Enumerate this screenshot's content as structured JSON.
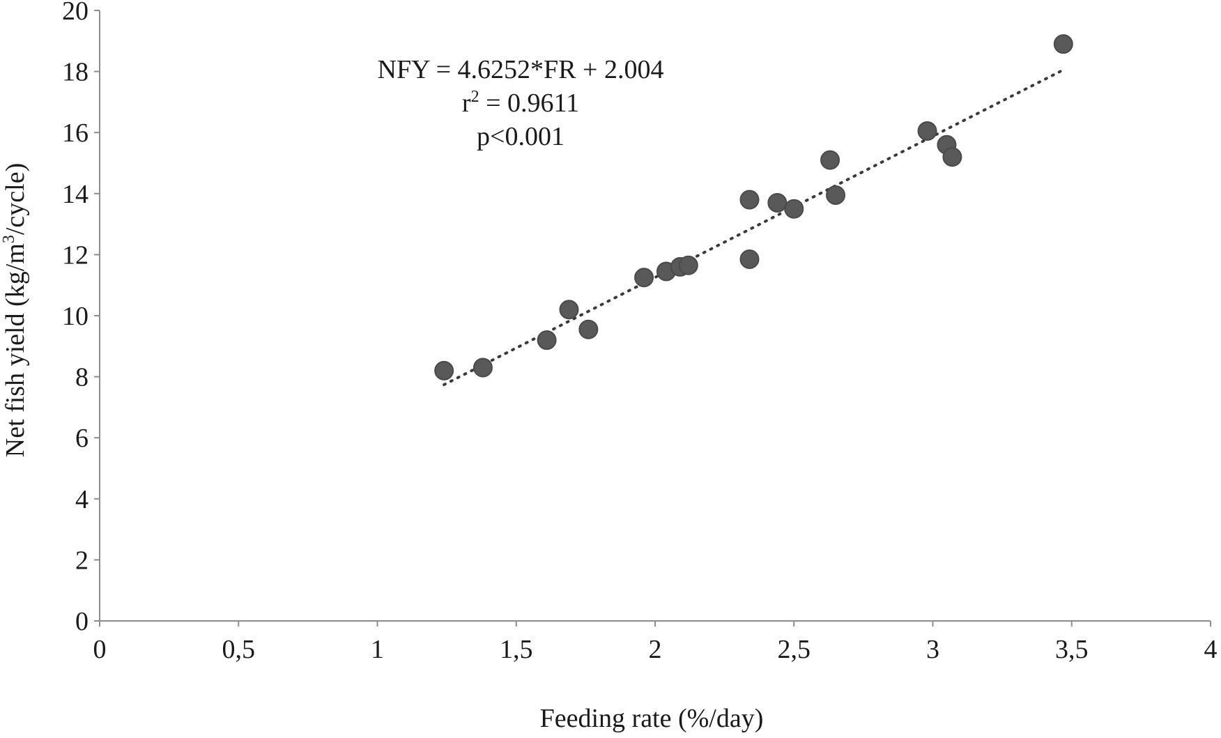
{
  "chart_data": {
    "type": "scatter",
    "xlabel": "Feeding rate (%/day)",
    "ylabel_parts": [
      "Net  fish yield (kg/m",
      "3",
      "/cycle)"
    ],
    "xlim": [
      0,
      4
    ],
    "ylim": [
      0,
      20
    ],
    "x_ticks": [
      0,
      0.5,
      1,
      1.5,
      2,
      2.5,
      3,
      3.5,
      4
    ],
    "x_tick_labels": [
      "0",
      "0,5",
      "1",
      "1,5",
      "2",
      "2,5",
      "3",
      "3,5",
      "4"
    ],
    "y_ticks": [
      0,
      2,
      4,
      6,
      8,
      10,
      12,
      14,
      16,
      18,
      20
    ],
    "y_tick_labels": [
      "0",
      "2",
      "4",
      "6",
      "8",
      "10",
      "12",
      "14",
      "16",
      "18",
      "20"
    ],
    "grid": false,
    "points": [
      {
        "x": 1.24,
        "y": 8.2
      },
      {
        "x": 1.38,
        "y": 8.3
      },
      {
        "x": 1.61,
        "y": 9.2
      },
      {
        "x": 1.69,
        "y": 10.2
      },
      {
        "x": 1.76,
        "y": 9.55
      },
      {
        "x": 1.96,
        "y": 11.25
      },
      {
        "x": 2.04,
        "y": 11.45
      },
      {
        "x": 2.09,
        "y": 11.6
      },
      {
        "x": 2.12,
        "y": 11.65
      },
      {
        "x": 2.34,
        "y": 13.8
      },
      {
        "x": 2.34,
        "y": 11.85
      },
      {
        "x": 2.44,
        "y": 13.7
      },
      {
        "x": 2.5,
        "y": 13.5
      },
      {
        "x": 2.63,
        "y": 15.1
      },
      {
        "x": 2.65,
        "y": 13.95
      },
      {
        "x": 2.98,
        "y": 16.05
      },
      {
        "x": 3.05,
        "y": 15.6
      },
      {
        "x": 3.07,
        "y": 15.2
      },
      {
        "x": 3.47,
        "y": 18.9
      }
    ],
    "trendline": {
      "slope": 4.6252,
      "intercept": 2.004,
      "x_range": [
        1.24,
        3.47
      ],
      "style": "dotted"
    },
    "annotations": {
      "equation": "NFY = 4.6252*FR + 2.004",
      "r2_prefix": "r",
      "r2_sup": "2",
      "r2_suffix": " = 0.9611",
      "p_value": "p<0.001"
    }
  }
}
